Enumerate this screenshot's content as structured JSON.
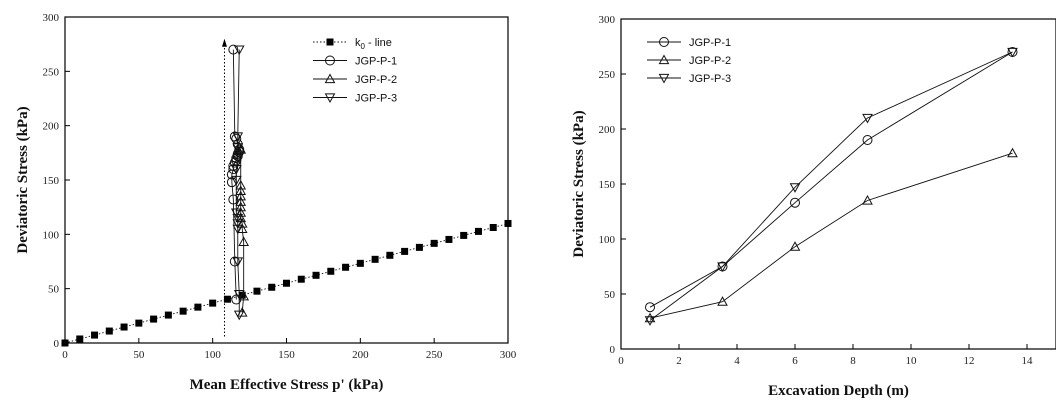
{
  "chart_data": [
    {
      "type": "scatter",
      "title": "",
      "xlabel": "Mean Effective Stress p' (kPa)",
      "ylabel": "Deviatoric Stress (kPa)",
      "xlim": [
        0,
        300
      ],
      "ylim": [
        0,
        300
      ],
      "xticks": [
        0,
        50,
        100,
        150,
        200,
        250,
        300
      ],
      "yticks": [
        0,
        50,
        100,
        150,
        200,
        250,
        300
      ],
      "grid": false,
      "legend_position": "top-right",
      "legend": [
        {
          "prefix": "k",
          "sub": "0",
          "suffix": " - line"
        },
        {
          "label": "JGP-P-1"
        },
        {
          "label": "JGP-P-2"
        },
        {
          "label": "JGP-P-3"
        }
      ],
      "series": [
        {
          "name": "k0 - line",
          "marker": "square-filled",
          "line": "dotted",
          "x": [
            0,
            10,
            20,
            30,
            40,
            50,
            60,
            70,
            80,
            90,
            100,
            110,
            120,
            130,
            140,
            150,
            160,
            170,
            180,
            190,
            200,
            210,
            220,
            230,
            240,
            250,
            260,
            270,
            280,
            290,
            300
          ],
          "y": [
            0,
            3.7,
            7.3,
            11,
            14.7,
            18.3,
            22,
            25.7,
            29.3,
            33,
            36.7,
            40.3,
            44,
            47.7,
            51.3,
            55,
            58.7,
            62.3,
            66,
            69.7,
            73.3,
            77,
            80.7,
            84.3,
            88,
            91.7,
            95.3,
            99,
            102.7,
            106.3,
            110
          ]
        },
        {
          "name": "JGP-P-1",
          "marker": "circle",
          "x": [
            116,
            115,
            114,
            113,
            113,
            114,
            114,
            115,
            116,
            116,
            117,
            117,
            118,
            118,
            117,
            116,
            115,
            114
          ],
          "y": [
            40,
            75,
            132,
            148,
            155,
            160,
            163,
            166,
            168,
            170,
            172,
            174,
            176,
            178,
            183,
            188,
            190,
            270
          ]
        },
        {
          "name": "JGP-P-2",
          "marker": "triangle-up",
          "x": [
            120,
            121,
            121,
            120,
            120,
            119,
            119,
            119,
            119,
            119,
            119,
            119,
            119,
            118
          ],
          "y": [
            28,
            43,
            93,
            105,
            110,
            115,
            120,
            125,
            130,
            135,
            140,
            145,
            178,
            180
          ]
        },
        {
          "name": "JGP-P-3",
          "marker": "triangle-down",
          "x": [
            118,
            118,
            117,
            117,
            117,
            117,
            116,
            116,
            116,
            117,
            117,
            117,
            118
          ],
          "y": [
            26,
            45,
            75,
            105,
            110,
            115,
            120,
            150,
            160,
            170,
            180,
            190,
            270
          ]
        }
      ],
      "annotations": [
        {
          "type": "arrow",
          "style": "dotted",
          "x": 108,
          "y_from": 6,
          "y_to": 280
        }
      ]
    },
    {
      "type": "line",
      "title": "",
      "xlabel": "Excavation Depth (m)",
      "ylabel": "Deviatoric Stress (kPa)",
      "xlim": [
        0,
        15
      ],
      "ylim": [
        0,
        300
      ],
      "xticks": [
        0,
        2,
        4,
        6,
        8,
        10,
        12,
        14
      ],
      "yticks": [
        0,
        50,
        100,
        150,
        200,
        250,
        300
      ],
      "grid": false,
      "legend_position": "top-left",
      "legend": [
        {
          "label": "JGP-P-1"
        },
        {
          "label": "JGP-P-2"
        },
        {
          "label": "JGP-P-3"
        }
      ],
      "series": [
        {
          "name": "JGP-P-1",
          "marker": "circle",
          "x": [
            1,
            3.5,
            6,
            8.5,
            13.5
          ],
          "y": [
            38,
            75,
            133,
            190,
            270
          ]
        },
        {
          "name": "JGP-P-2",
          "marker": "triangle-up",
          "x": [
            1,
            3.5,
            6,
            8.5,
            13.5
          ],
          "y": [
            28,
            43,
            93,
            135,
            178
          ]
        },
        {
          "name": "JGP-P-3",
          "marker": "triangle-down",
          "x": [
            1,
            3.5,
            6,
            8.5,
            13.5
          ],
          "y": [
            26,
            75,
            147,
            210,
            270
          ]
        }
      ]
    }
  ]
}
